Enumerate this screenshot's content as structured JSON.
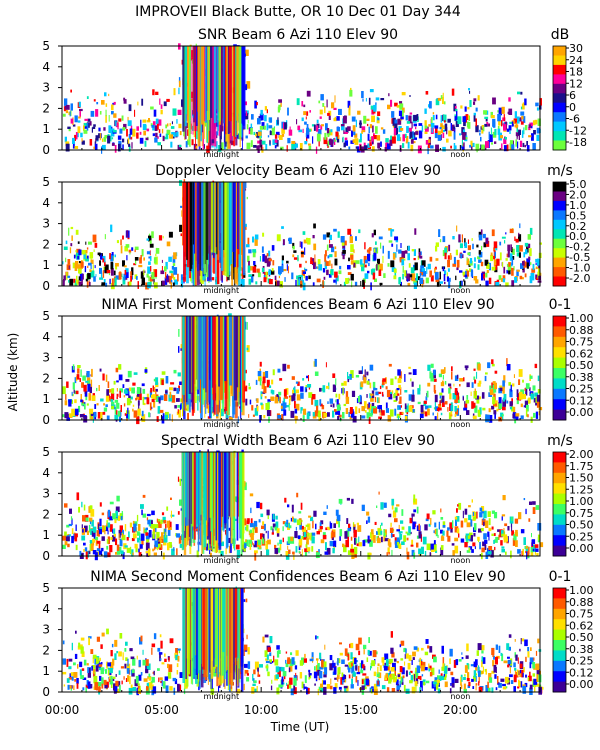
{
  "figure": {
    "title": "IMPROVEII  Black Butte, OR  10 Dec 01 Day 344",
    "ylabel": "Altitude (km)",
    "xlabel": "Time (UT)",
    "x_ticks": [
      "00:00",
      "05:00",
      "10:00",
      "15:00",
      "20:00"
    ],
    "markers": [
      {
        "label": "midnight",
        "hour": 8.0
      },
      {
        "label": "noon",
        "hour": 20.0
      }
    ]
  },
  "chart_data": [
    {
      "type": "heatmap",
      "title": "SNR Beam 6 Azi 110 Elev 90",
      "unit": "dB",
      "xlim": [
        0,
        24
      ],
      "ylim": [
        0,
        5
      ],
      "y_ticks": [
        "0",
        "1",
        "2",
        "3",
        "4",
        "5"
      ],
      "colorbar": {
        "labels": [
          "30",
          "24",
          "18",
          "12",
          "6",
          "0",
          "-6",
          "-12",
          "-18"
        ],
        "colors": [
          "#ffa500",
          "#ffd400",
          "#ff0000",
          "#ff0099",
          "#6a0082",
          "#1a0f8a",
          "#0000ff",
          "#0a78ff",
          "#00c8ff",
          "#00e6b4",
          "#6cff3c"
        ]
      }
    },
    {
      "type": "heatmap",
      "title": "Doppler Velocity Beam 6 Azi 110 Elev 90",
      "unit": "m/s",
      "xlim": [
        0,
        24
      ],
      "ylim": [
        0,
        5
      ],
      "y_ticks": [
        "0",
        "1",
        "2",
        "3",
        "4",
        "5"
      ],
      "colorbar": {
        "labels": [
          "5.0",
          "2.0",
          "1.0",
          "0.5",
          "0.2",
          "0.0",
          "-0.2",
          "-0.5",
          "-1.0",
          "-2.0"
        ],
        "colors": [
          "#000000",
          "#6a0082",
          "#0000ff",
          "#0a78ff",
          "#00c8ff",
          "#00e6b4",
          "#6cff3c",
          "#c8ff00",
          "#ffa500",
          "#ff5a00",
          "#ff0000"
        ]
      }
    },
    {
      "type": "heatmap",
      "title": "NIMA First Moment Confidences Beam 6 Azi 110 Elev 90",
      "unit": "0-1",
      "xlim": [
        0,
        24
      ],
      "ylim": [
        0,
        5
      ],
      "y_ticks": [
        "0",
        "1",
        "2",
        "3",
        "4",
        "5"
      ],
      "colorbar": {
        "labels": [
          "1.00",
          "0.88",
          "0.75",
          "0.62",
          "0.50",
          "0.38",
          "0.25",
          "0.12",
          "0.00"
        ],
        "colors": [
          "#ff0000",
          "#ff5a00",
          "#ffa500",
          "#ffe000",
          "#aaff00",
          "#3cff64",
          "#00dcc8",
          "#0a78ff",
          "#0000ff",
          "#3c0096"
        ]
      }
    },
    {
      "type": "heatmap",
      "title": "Spectral Width Beam 6 Azi 110 Elev 90",
      "unit": "m/s",
      "xlim": [
        0,
        24
      ],
      "ylim": [
        0,
        5
      ],
      "y_ticks": [
        "0",
        "1",
        "2",
        "3",
        "4",
        "5"
      ],
      "colorbar": {
        "labels": [
          "2.00",
          "1.75",
          "1.50",
          "1.25",
          "1.00",
          "0.75",
          "0.50",
          "0.25",
          "0.00"
        ],
        "colors": [
          "#ff0000",
          "#ff5a00",
          "#ffa500",
          "#ffe000",
          "#aaff00",
          "#3cff64",
          "#00dcc8",
          "#0a78ff",
          "#0000ff",
          "#3c0096"
        ]
      }
    },
    {
      "type": "heatmap",
      "title": "NIMA Second Moment Confidences Beam 6 Azi 110 Elev 90",
      "unit": "0-1",
      "xlim": [
        0,
        24
      ],
      "ylim": [
        0,
        5
      ],
      "y_ticks": [
        "0",
        "1",
        "2",
        "3",
        "4",
        "5"
      ],
      "colorbar": {
        "labels": [
          "1.00",
          "0.88",
          "0.75",
          "0.62",
          "0.50",
          "0.38",
          "0.25",
          "0.12",
          "0.00"
        ],
        "colors": [
          "#ff0000",
          "#ff5a00",
          "#ffa500",
          "#ffe000",
          "#aaff00",
          "#3cff64",
          "#00dcc8",
          "#0a78ff",
          "#0000ff",
          "#3c0096"
        ]
      }
    }
  ]
}
